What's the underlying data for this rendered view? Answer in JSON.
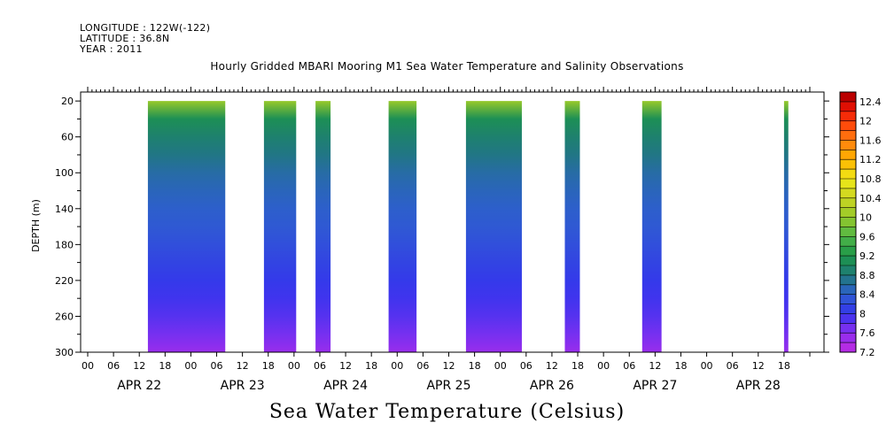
{
  "header": {
    "longitude": "LONGITUDE : 122W(-122)",
    "latitude": "LATITUDE : 36.8N",
    "year": "YEAR : 2011"
  },
  "chart_data": {
    "type": "heatmap",
    "title": "Hourly Gridded MBARI Mooring M1 Sea Water Temperature and Salinity Observations",
    "xlabel": "Sea Water Temperature (Celsius)",
    "ylabel": "DEPTH (m)",
    "ylim": [
      300,
      10
    ],
    "y_ticks": [
      20,
      60,
      100,
      140,
      180,
      220,
      260,
      300
    ],
    "x_hour_ticks": [
      "00",
      "06",
      "12",
      "18",
      "00",
      "06",
      "12",
      "18",
      "00",
      "06",
      "12",
      "18",
      "00",
      "06",
      "12",
      "18",
      "00",
      "06",
      "12",
      "18",
      "00",
      "06",
      "12",
      "18",
      "00",
      "06",
      "12",
      "18"
    ],
    "x_day_labels": [
      "APR 22",
      "APR 23",
      "APR 24",
      "APR 25",
      "APR 26",
      "APR 27",
      "APR 28"
    ],
    "xlim_hours": [
      0,
      168
    ],
    "data_windows_hours": [
      [
        14,
        32
      ],
      [
        41,
        48.5
      ],
      [
        53,
        56.5
      ],
      [
        70,
        76.5
      ],
      [
        88,
        101
      ],
      [
        111,
        114.5
      ],
      [
        129,
        133.5
      ],
      [
        162,
        163
      ]
    ],
    "depth_profile": {
      "depths": [
        20,
        40,
        60,
        80,
        100,
        120,
        140,
        160,
        180,
        200,
        220,
        240,
        260,
        280,
        300
      ],
      "temperature": [
        10.0,
        9.1,
        8.9,
        8.75,
        8.6,
        8.5,
        8.42,
        8.35,
        8.25,
        8.15,
        8.05,
        7.95,
        7.85,
        7.7,
        7.5
      ]
    },
    "colorbar": {
      "levels": [
        7.2,
        12.6
      ],
      "step": 0.2,
      "tick_labels": [
        "12.4",
        "12",
        "11.6",
        "11.2",
        "10.8",
        "10.4",
        "10",
        "9.6",
        "9.2",
        "8.8",
        "8.4",
        "8",
        "7.6",
        "7.2"
      ]
    }
  }
}
